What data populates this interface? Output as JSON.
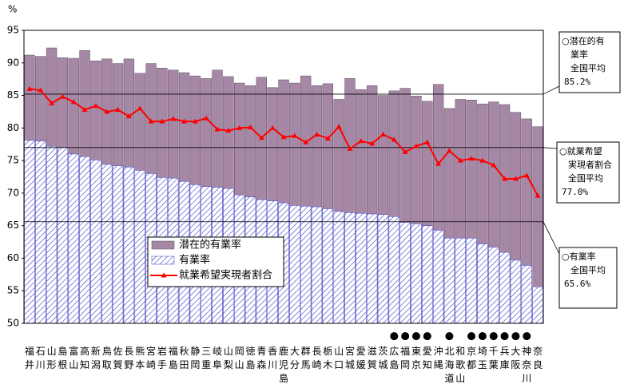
{
  "chart_data": {
    "type": "bar",
    "ylabel": "%",
    "categories": [
      "福井",
      "石川",
      "山形",
      "島根",
      "富山",
      "高知",
      "新潟",
      "鳥取",
      "佐賀",
      "長野",
      "熊本",
      "宮崎",
      "岩手",
      "福島",
      "秋田",
      "静岡",
      "三重",
      "岐阜",
      "山梨",
      "岡山",
      "徳島",
      "青森",
      "香川",
      "鹿児島",
      "大分",
      "群馬",
      "長崎",
      "栃木",
      "山口",
      "宮城",
      "愛媛",
      "滋賀",
      "茨城",
      "広島",
      "福岡",
      "東京",
      "愛知",
      "沖縄",
      "北海道",
      "和歌山",
      "京都",
      "埼玉",
      "千葉",
      "兵庫",
      "大阪",
      "神奈川",
      "奈良"
    ],
    "category_marks": [
      null,
      null,
      null,
      null,
      null,
      null,
      null,
      null,
      null,
      null,
      null,
      null,
      null,
      null,
      null,
      null,
      null,
      null,
      null,
      null,
      null,
      null,
      null,
      null,
      null,
      null,
      null,
      null,
      null,
      null,
      null,
      null,
      null,
      "●",
      "●",
      "●",
      "●",
      null,
      "●",
      null,
      "●",
      "●",
      "●",
      "●",
      "●",
      "●",
      null
    ],
    "series": [
      {
        "name": "潜在的有業率",
        "kind": "bar",
        "color": "#a688a6",
        "values": [
          91.2,
          91.0,
          92.3,
          90.8,
          90.7,
          91.9,
          90.3,
          90.6,
          89.9,
          90.6,
          88.4,
          89.9,
          89.2,
          88.9,
          88.5,
          88.0,
          87.6,
          88.9,
          87.9,
          86.9,
          86.5,
          87.8,
          86.2,
          87.4,
          86.9,
          88.0,
          86.5,
          86.8,
          84.4,
          87.6,
          85.9,
          86.5,
          85.0,
          85.7,
          86.1,
          84.9,
          84.1,
          86.7,
          83.0,
          84.4,
          84.3,
          83.7,
          84.0,
          83.6,
          82.4,
          81.4,
          80.2
        ]
      },
      {
        "name": "有業率",
        "kind": "hatched",
        "color": "#3a3acc",
        "values": [
          78.1,
          78.0,
          77.2,
          77.0,
          76.0,
          75.6,
          75.1,
          74.4,
          74.2,
          74.0,
          73.5,
          73.0,
          72.4,
          72.3,
          71.8,
          71.3,
          71.0,
          70.9,
          70.7,
          69.7,
          69.4,
          69.0,
          68.8,
          68.5,
          68.1,
          68.0,
          67.9,
          67.6,
          67.2,
          67.0,
          66.9,
          66.8,
          66.7,
          66.4,
          65.5,
          65.3,
          65.0,
          64.3,
          63.1,
          63.1,
          63.1,
          62.2,
          61.7,
          60.9,
          59.7,
          58.9,
          55.6
        ]
      },
      {
        "name": "就業希望実現者割合",
        "kind": "line",
        "color": "#ff0000",
        "values": [
          86.0,
          85.8,
          83.8,
          84.8,
          84.0,
          82.8,
          83.4,
          82.5,
          82.8,
          81.8,
          83.0,
          81.0,
          81.0,
          81.4,
          81.0,
          81.0,
          81.5,
          79.8,
          79.6,
          80.0,
          80.1,
          78.5,
          80.0,
          78.6,
          78.8,
          77.8,
          79.0,
          78.4,
          80.2,
          76.8,
          78.0,
          77.6,
          79.0,
          78.2,
          76.3,
          77.2,
          77.8,
          74.5,
          76.5,
          75.0,
          75.3,
          75.0,
          74.3,
          72.2,
          72.2,
          72.7,
          69.6
        ]
      }
    ],
    "reference_lines": [
      {
        "value": 85.2,
        "lines": [
          "○潜在的有",
          "業率",
          "全国平均",
          "85.2%"
        ]
      },
      {
        "value": 77.0,
        "lines": [
          "○就業希望",
          "実現者割合",
          "全国平均",
          "77.0%"
        ]
      },
      {
        "value": 65.6,
        "lines": [
          "○有業率",
          "全国平均",
          "65.6%"
        ]
      }
    ],
    "ylim": [
      50,
      95
    ],
    "yticks": [
      50,
      55,
      60,
      65,
      70,
      75,
      80,
      85,
      90,
      95
    ],
    "grid": false
  }
}
